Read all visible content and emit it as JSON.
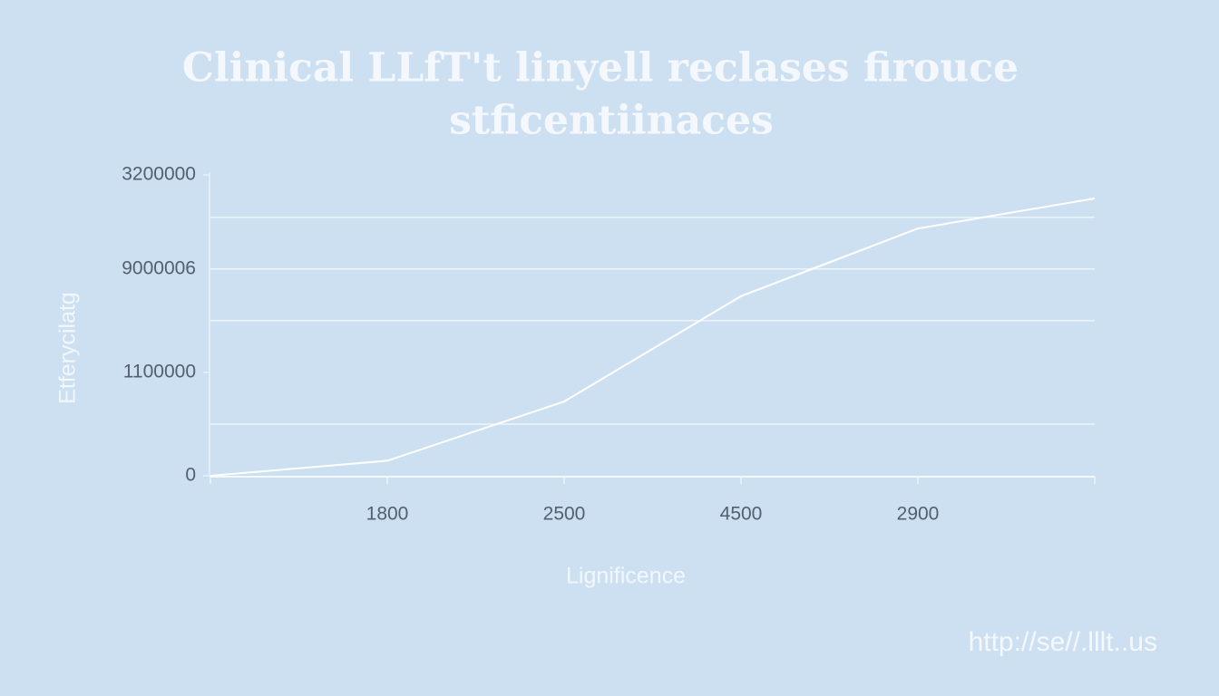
{
  "chart_data": {
    "type": "line",
    "title": "Clinical LLfT't linyell reclases firouce",
    "subtitle": "stficentiinaces",
    "y_label": "Etferycilatg",
    "x_label": "Lignificence",
    "footer": "http://se//.lllt..us",
    "categories": [
      null,
      "1800",
      "2500",
      "4500",
      "2900",
      null
    ],
    "values": [
      0,
      160000,
      790000,
      1910000,
      2630000,
      2950000
    ],
    "color": "#ffffff",
    "ylim": [
      0,
      3200000
    ],
    "yticks": [
      0,
      1100000,
      3200000
    ],
    "grid_values": [
      550000,
      1650000,
      2200000,
      2750000
    ],
    "annotations": [
      {
        "text": "9000006",
        "y": 2200000
      }
    ],
    "grid": true
  }
}
